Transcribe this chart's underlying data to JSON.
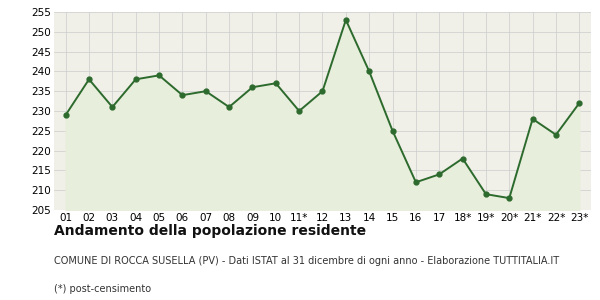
{
  "x_labels": [
    "01",
    "02",
    "03",
    "04",
    "05",
    "06",
    "07",
    "08",
    "09",
    "10",
    "11*",
    "12",
    "13",
    "14",
    "15",
    "16",
    "17",
    "18*",
    "19*",
    "20*",
    "21*",
    "22*",
    "23*"
  ],
  "y_values": [
    229,
    238,
    231,
    238,
    239,
    234,
    235,
    231,
    236,
    237,
    230,
    235,
    253,
    240,
    225,
    212,
    214,
    218,
    209,
    208,
    228,
    224,
    232
  ],
  "ylim": [
    205,
    255
  ],
  "yticks": [
    205,
    210,
    215,
    220,
    225,
    230,
    235,
    240,
    245,
    250,
    255
  ],
  "line_color": "#2d6a2d",
  "fill_color": "#e8eedc",
  "marker": "o",
  "marker_size": 3.5,
  "line_width": 1.4,
  "grid_color": "#cccccc",
  "plot_bg_color": "#f0f0e8",
  "outer_bg_color": "#ffffff",
  "title": "Andamento della popolazione residente",
  "subtitle": "COMUNE DI ROCCA SUSELLA (PV) - Dati ISTAT al 31 dicembre di ogni anno - Elaborazione TUTTITALIA.IT",
  "footnote": "(*) post-censimento",
  "title_fontsize": 10,
  "subtitle_fontsize": 7,
  "footnote_fontsize": 7,
  "tick_fontsize": 7.5
}
